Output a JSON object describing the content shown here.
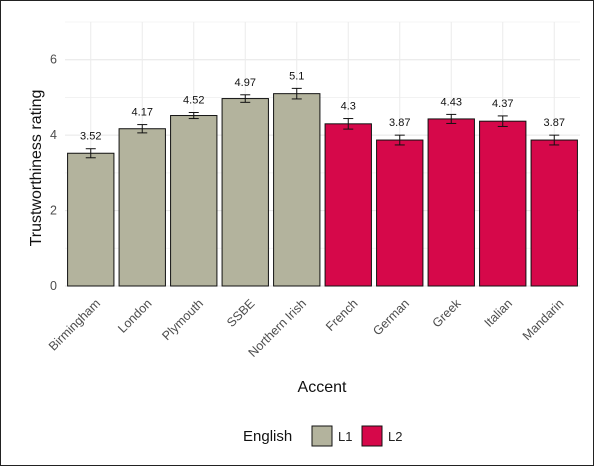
{
  "chart_data": {
    "type": "bar",
    "title": "",
    "xlabel": "Accent",
    "ylabel": "Trustworthiness rating",
    "ylim": [
      0,
      7
    ],
    "yticks": [
      0,
      2,
      4,
      6
    ],
    "grid": true,
    "categories": [
      "Birmingham",
      "London",
      "Plymouth",
      "SSBE",
      "Northern Irish",
      "French",
      "German",
      "Greek",
      "Italian",
      "Mandarin"
    ],
    "values": [
      3.52,
      4.17,
      4.52,
      4.97,
      5.1,
      4.3,
      3.87,
      4.43,
      4.37,
      3.87
    ],
    "value_labels": [
      "3.52",
      "4.17",
      "4.52",
      "4.97",
      "5.1",
      "4.3",
      "3.87",
      "4.43",
      "4.37",
      "3.87"
    ],
    "error": [
      0.12,
      0.11,
      0.08,
      0.1,
      0.14,
      0.14,
      0.13,
      0.12,
      0.14,
      0.13
    ],
    "group": [
      "L1",
      "L1",
      "L1",
      "L1",
      "L1",
      "L2",
      "L2",
      "L2",
      "L2",
      "L2"
    ],
    "legend": {
      "title": "English",
      "placement": "bottom",
      "items": [
        {
          "name": "L1",
          "color": "#b3b39d"
        },
        {
          "name": "L2",
          "color": "#d6084a"
        }
      ]
    }
  }
}
